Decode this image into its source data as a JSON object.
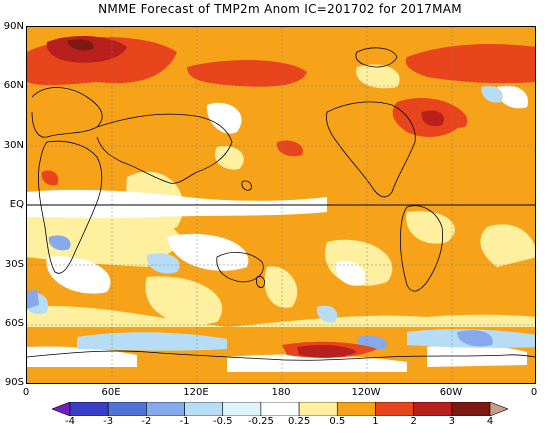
{
  "title": "NMME Forecast of TMP2m Anom  IC=201702 for 2017MAM",
  "lat_labels": [
    "90N",
    "60N",
    "30N",
    "EQ",
    "30S",
    "60S",
    "90S"
  ],
  "lon_labels": [
    "0",
    "60E",
    "120E",
    "180",
    "120W",
    "60W",
    "0"
  ],
  "legend": {
    "labels": [
      "-4",
      "-3",
      "-2",
      "-1",
      "-0.5",
      "-0.25",
      "0.25",
      "0.5",
      "1",
      "2",
      "3",
      "4"
    ],
    "colors": [
      "#6e1fbf",
      "#3b3ec9",
      "#4f74d6",
      "#86a9ec",
      "#b7ddf6",
      "#def3fb",
      "#ffffff",
      "#fff0a0",
      "#f7a31a",
      "#e8451c",
      "#b8201e",
      "#7d1a14",
      "#c89d88"
    ]
  }
}
